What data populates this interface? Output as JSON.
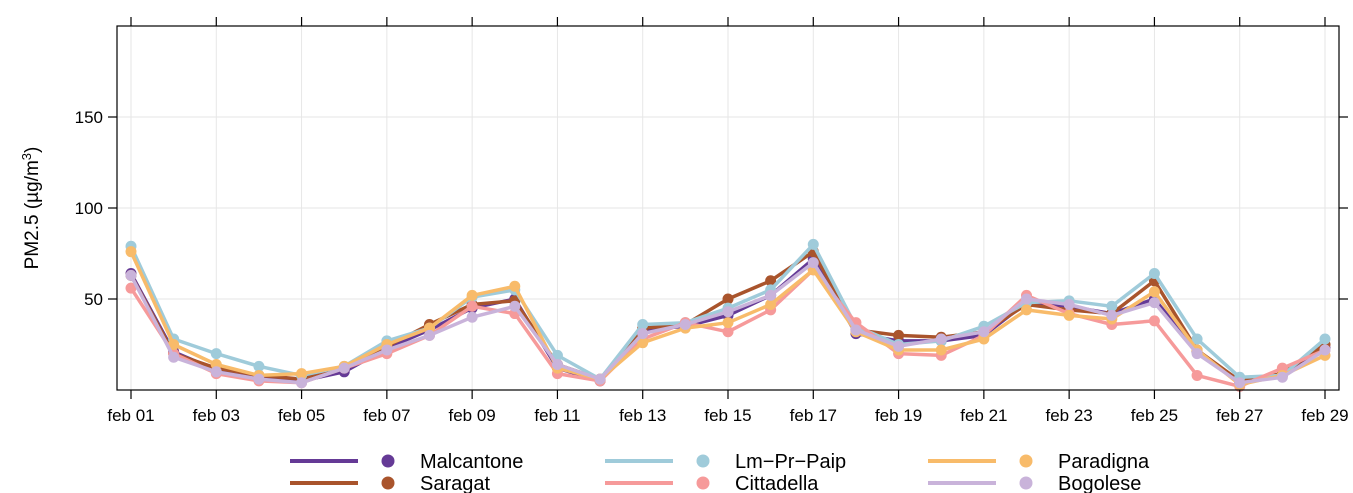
{
  "chart_data": {
    "type": "line",
    "ylabel": "PM2.5 (µg/m",
    "ylabel_sup": "3",
    "ylabel_close": ")",
    "ylim": [
      0,
      200
    ],
    "yticks": [
      50,
      100,
      150
    ],
    "x": [
      "feb 01",
      "feb 02",
      "feb 03",
      "feb 04",
      "feb 05",
      "feb 06",
      "feb 07",
      "feb 08",
      "feb 09",
      "feb 10",
      "feb 11",
      "feb 12",
      "feb 13",
      "feb 14",
      "feb 15",
      "feb 16",
      "feb 17",
      "feb 18",
      "feb 19",
      "feb 20",
      "feb 21",
      "feb 22",
      "feb 23",
      "feb 24",
      "feb 25",
      "feb 26",
      "feb 27",
      "feb 28",
      "feb 29"
    ],
    "xticks": [
      "feb 01",
      "feb 03",
      "feb 05",
      "feb 07",
      "feb 09",
      "feb 11",
      "feb 13",
      "feb 15",
      "feb 17",
      "feb 19",
      "feb 21",
      "feb 23",
      "feb 25",
      "feb 27",
      "feb 29"
    ],
    "grid": true,
    "legend_position": "bottom",
    "series": [
      {
        "name": "Malcantone",
        "color": "#653a96",
        "values": [
          64,
          21,
          11,
          7,
          5,
          10,
          23,
          33,
          45,
          50,
          12,
          5,
          33,
          35,
          41,
          52,
          72,
          31,
          27,
          27,
          30,
          48,
          46,
          42,
          50,
          21,
          4,
          8,
          23
        ]
      },
      {
        "name": "Saragat",
        "color": "#a9542c",
        "values": [
          63,
          20,
          12,
          8,
          6,
          12,
          24,
          36,
          47,
          49,
          14,
          6,
          34,
          36,
          50,
          60,
          76,
          33,
          30,
          29,
          32,
          47,
          44,
          42,
          60,
          22,
          5,
          9,
          25
        ]
      },
      {
        "name": "Lm−Pr−Paip",
        "color": "#9fcbda",
        "values": [
          79,
          28,
          20,
          13,
          8,
          13,
          27,
          34,
          51,
          55,
          19,
          6,
          36,
          37,
          45,
          55,
          80,
          35,
          25,
          27,
          35,
          48,
          49,
          46,
          64,
          28,
          7,
          8,
          28
        ]
      },
      {
        "name": "Cittadella",
        "color": "#f69a9a",
        "values": [
          56,
          20,
          9,
          5,
          4,
          12,
          20,
          30,
          46,
          42,
          9,
          5,
          28,
          37,
          32,
          44,
          66,
          37,
          20,
          19,
          30,
          52,
          42,
          36,
          38,
          8,
          2,
          12,
          22
        ]
      },
      {
        "name": "Paradigna",
        "color": "#f8bb6a",
        "values": [
          76,
          25,
          14,
          8,
          9,
          13,
          25,
          34,
          52,
          57,
          12,
          6,
          26,
          34,
          37,
          47,
          66,
          32,
          22,
          22,
          28,
          44,
          41,
          39,
          54,
          22,
          3,
          8,
          19
        ]
      },
      {
        "name": "Bogolese",
        "color": "#c9b3da",
        "values": [
          63,
          18,
          10,
          6,
          4,
          12,
          22,
          30,
          40,
          46,
          14,
          6,
          31,
          36,
          43,
          52,
          70,
          33,
          24,
          28,
          32,
          50,
          47,
          41,
          48,
          20,
          4,
          7,
          22
        ]
      }
    ]
  }
}
